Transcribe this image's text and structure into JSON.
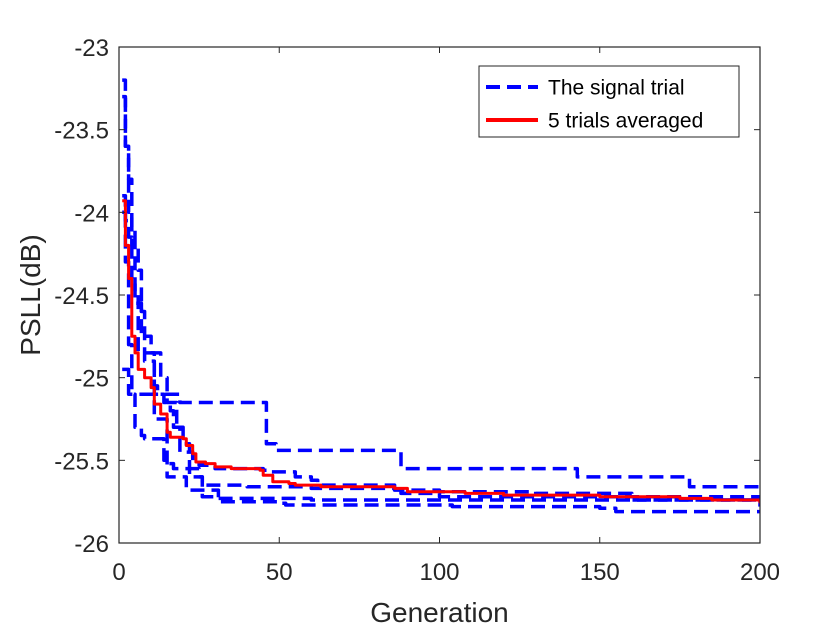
{
  "chart_data": {
    "type": "line",
    "title": "",
    "xlabel": "Generation",
    "ylabel": "PSLL(dB)",
    "xlim": [
      0,
      200
    ],
    "ylim": [
      -26,
      -23
    ],
    "xticks": [
      "0",
      "50",
      "100",
      "150",
      "200"
    ],
    "yticks": [
      "-23",
      "-23.5",
      "-24",
      "-24.5",
      "-25",
      "-25.5",
      "-26"
    ],
    "grid": false,
    "legend": {
      "placement": "top-right",
      "entries": [
        "The signal trial",
        "5 trials averaged"
      ]
    },
    "colors": {
      "trial": "#0000ff",
      "average": "#ff0000"
    },
    "series": [
      {
        "legend_label": "The signal trial",
        "style": "dashed",
        "x": [
          1,
          2,
          3,
          4,
          5,
          6,
          7,
          8,
          11,
          12,
          14,
          16,
          17,
          19,
          23,
          25,
          30,
          45,
          47,
          55,
          60,
          62,
          86,
          88,
          100,
          200
        ],
        "y": [
          -23.3,
          -23.6,
          -23.8,
          -24.1,
          -24.2,
          -24.35,
          -24.6,
          -24.9,
          -25.05,
          -25.1,
          -25.15,
          -25.2,
          -25.3,
          -25.45,
          -25.5,
          -25.53,
          -25.55,
          -25.56,
          -25.57,
          -25.6,
          -25.62,
          -25.65,
          -25.68,
          -25.7,
          -25.72,
          -25.75
        ]
      },
      {
        "legend_label": "The signal trial",
        "style": "dashed",
        "x": [
          1,
          2,
          3,
          4,
          5,
          6,
          9,
          11,
          13,
          17,
          19,
          20,
          25,
          30,
          45,
          46,
          49,
          87,
          88,
          140,
          143,
          175,
          178,
          200
        ],
        "y": [
          -23.2,
          -23.6,
          -24.0,
          -24.2,
          -24.5,
          -24.85,
          -24.85,
          -25.1,
          -25.1,
          -25.1,
          -25.15,
          -25.15,
          -25.15,
          -25.15,
          -25.15,
          -25.4,
          -25.44,
          -25.44,
          -25.55,
          -25.55,
          -25.6,
          -25.6,
          -25.66,
          -25.68
        ]
      },
      {
        "legend_label": "The signal trial",
        "style": "dashed",
        "x": [
          1,
          2,
          3,
          4,
          5,
          7,
          8,
          14,
          15,
          17,
          22,
          24,
          25,
          26,
          30,
          60,
          200
        ],
        "y": [
          -23.9,
          -24.3,
          -24.8,
          -25.1,
          -25.3,
          -25.35,
          -25.37,
          -25.5,
          -25.52,
          -25.55,
          -25.55,
          -25.55,
          -25.6,
          -25.72,
          -25.73,
          -25.74,
          -25.75
        ]
      },
      {
        "legend_label": "The signal trial",
        "style": "dashed",
        "x": [
          1,
          2,
          3,
          4,
          10,
          11,
          14,
          15,
          20,
          21,
          25,
          31,
          50,
          52,
          86,
          104,
          150,
          155,
          200
        ],
        "y": [
          -24.95,
          -24.95,
          -25.1,
          -25.1,
          -25.1,
          -25.25,
          -25.25,
          -25.6,
          -25.6,
          -25.68,
          -25.68,
          -25.75,
          -25.76,
          -25.77,
          -25.77,
          -25.78,
          -25.79,
          -25.81,
          -25.81
        ]
      },
      {
        "legend_label": "The signal trial",
        "style": "dashed",
        "x": [
          1,
          2,
          3,
          4,
          5,
          7,
          10,
          13,
          15,
          18,
          20,
          22,
          26,
          40,
          60,
          86,
          100,
          130,
          160,
          200
        ],
        "y": [
          -24.0,
          -24.05,
          -24.15,
          -24.4,
          -24.55,
          -24.75,
          -24.85,
          -25.0,
          -25.15,
          -25.3,
          -25.4,
          -25.6,
          -25.65,
          -25.66,
          -25.67,
          -25.68,
          -25.69,
          -25.7,
          -25.74,
          -25.78
        ]
      },
      {
        "legend_label": "5 trials averaged",
        "style": "solid",
        "x": [
          1,
          2,
          3,
          4,
          5,
          6,
          8,
          10,
          11,
          13,
          15,
          16,
          20,
          21,
          23,
          24,
          27,
          30,
          35,
          44,
          45,
          48,
          53,
          55,
          60,
          63,
          70,
          85,
          86,
          90,
          105,
          108,
          120,
          150,
          175,
          185,
          200
        ],
        "y": [
          -23.93,
          -24.2,
          -24.4,
          -24.75,
          -24.85,
          -24.95,
          -25.0,
          -25.06,
          -25.16,
          -25.22,
          -25.33,
          -25.36,
          -25.37,
          -25.41,
          -25.46,
          -25.51,
          -25.52,
          -25.54,
          -25.55,
          -25.56,
          -25.59,
          -25.63,
          -25.64,
          -25.65,
          -25.65,
          -25.66,
          -25.66,
          -25.66,
          -25.67,
          -25.69,
          -25.69,
          -25.7,
          -25.71,
          -25.72,
          -25.73,
          -25.74,
          -25.76
        ]
      }
    ]
  }
}
